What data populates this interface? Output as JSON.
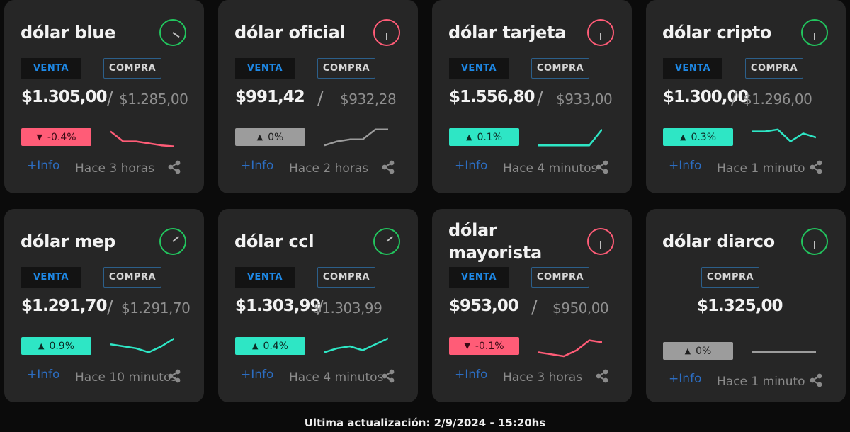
{
  "colors": {
    "up": "#2ee6c5",
    "down": "#ff5c77",
    "flat": "#9c9c9c",
    "accent": "#1e88e5"
  },
  "labels": {
    "venta": "VENTA",
    "compra": "COMPRA",
    "info": "+Info"
  },
  "footer": "Ultima actualización: 2/9/2024 - 15:20hs",
  "cards": [
    {
      "title": "dólar blue",
      "venta": "$1.305,00",
      "compra": "$1.285,00",
      "change": "-0.4%",
      "trend": "down",
      "time": "Hace 3 horas",
      "clock": "green",
      "spark": [
        0.8,
        0.3,
        0.3,
        0.2,
        0.1,
        0.05
      ]
    },
    {
      "title": "dólar oficial",
      "venta": "$991,42",
      "compra": "$932,28",
      "change": "0%",
      "trend": "flat",
      "time": "Hace 2 horas",
      "clock": "red",
      "spark": [
        0.1,
        0.3,
        0.4,
        0.4,
        0.9,
        0.9
      ]
    },
    {
      "title": "dólar tarjeta",
      "venta": "$1.556,80",
      "compra": "$933,00",
      "change": "0.1%",
      "trend": "up",
      "time": "Hace 4 minutos",
      "clock": "red",
      "spark": [
        0.1,
        0.1,
        0.1,
        0.1,
        0.1,
        0.9
      ]
    },
    {
      "title": "dólar cripto",
      "venta": "$1.300,00",
      "compra": "$1.296,00",
      "change": "0.3%",
      "trend": "up",
      "time": "Hace 1 minuto",
      "clock": "green",
      "spark": [
        0.8,
        0.8,
        0.9,
        0.3,
        0.7,
        0.5
      ]
    },
    {
      "title": "dólar mep",
      "venta": "$1.291,70",
      "compra": "$1.291,70",
      "change": "0.9%",
      "trend": "up",
      "time": "Hace 10 minutos",
      "clock": "green",
      "spark": [
        0.6,
        0.5,
        0.4,
        0.2,
        0.5,
        0.9
      ]
    },
    {
      "title": "dólar ccl",
      "venta": "$1.303,99",
      "compra": "$1.303,99",
      "change": "0.4%",
      "trend": "up",
      "time": "Hace 4 minutos",
      "clock": "green",
      "spark": [
        0.2,
        0.4,
        0.5,
        0.3,
        0.6,
        0.9
      ]
    },
    {
      "title": "dólar mayorista",
      "venta": "$953,00",
      "compra": "$950,00",
      "change": "-0.1%",
      "trend": "down",
      "time": "Hace 3 horas",
      "clock": "red",
      "spark": [
        0.2,
        0.1,
        0.0,
        0.3,
        0.8,
        0.7
      ]
    },
    {
      "title": "dólar diarco",
      "venta": "",
      "compra": "$1.325,00",
      "change": "0%",
      "trend": "flat",
      "time": "Hace 1 minuto",
      "clock": "green",
      "spark": [
        0.5,
        0.5,
        0.5,
        0.5,
        0.5,
        0.5
      ]
    }
  ]
}
